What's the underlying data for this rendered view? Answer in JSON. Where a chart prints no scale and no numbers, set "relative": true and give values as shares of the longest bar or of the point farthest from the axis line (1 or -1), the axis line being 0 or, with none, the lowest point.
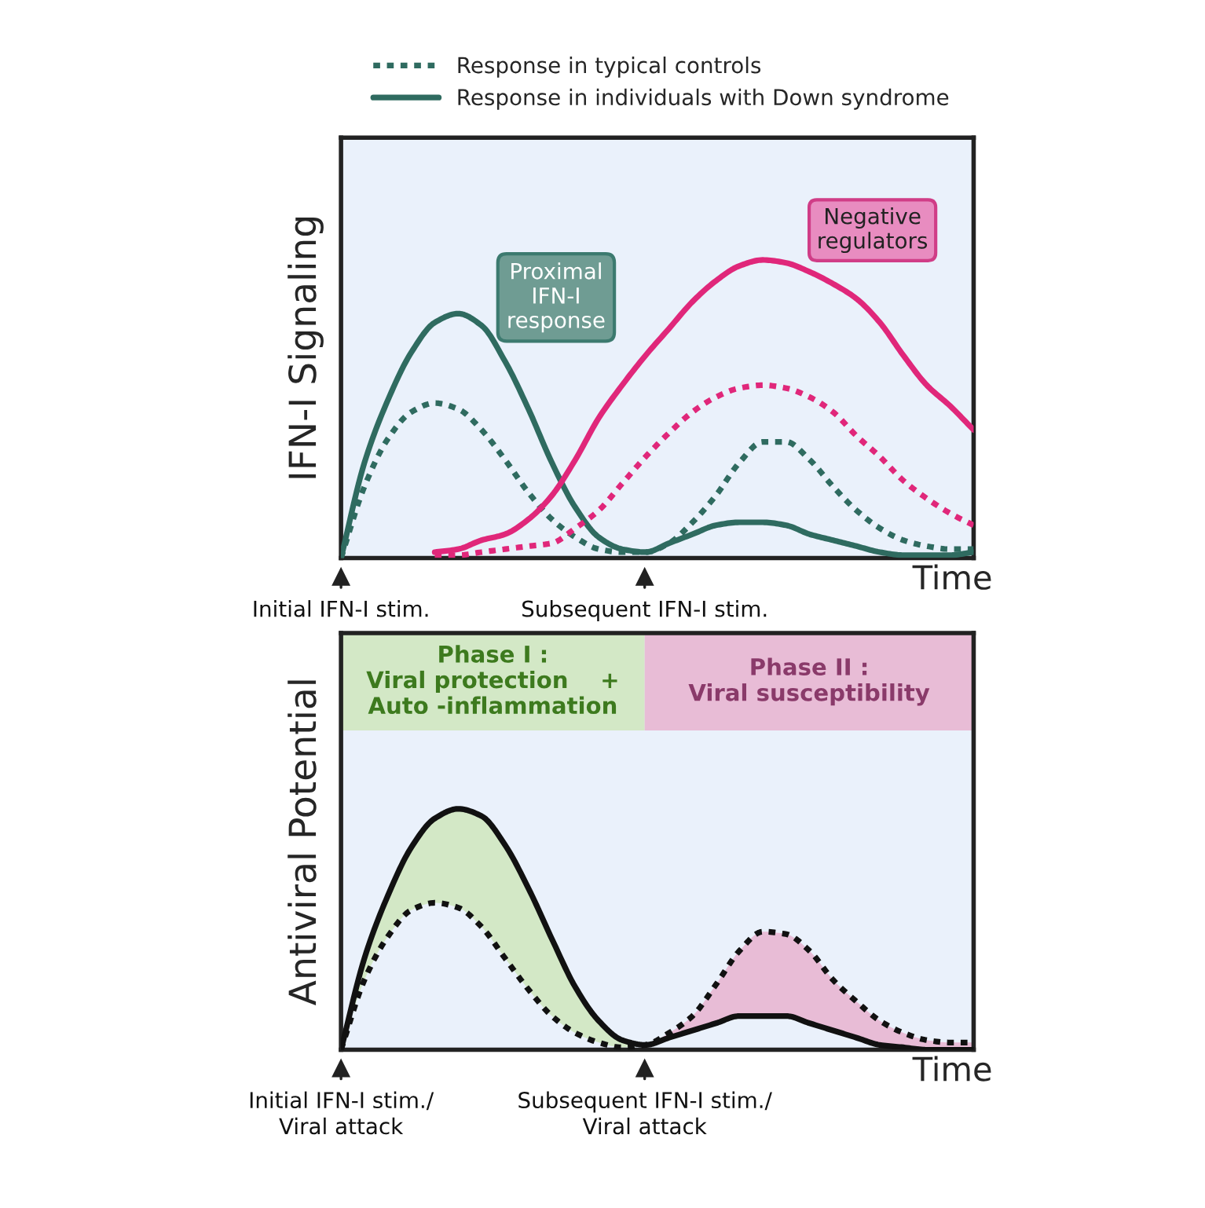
{
  "chart_data": [
    {
      "type": "line",
      "relative": true,
      "ylabel": "IFN-I Signaling",
      "xlabel": "Time",
      "legend": "top",
      "categories": [
        null,
        null,
        null,
        null,
        null,
        null,
        null,
        null,
        null,
        null,
        null,
        null,
        null,
        null,
        null,
        null,
        null,
        null,
        null,
        null,
        null,
        null,
        null,
        null,
        null,
        null,
        null,
        null
      ],
      "series": [
        {
          "name": "Response in typical controls",
          "color": "#2f6b60",
          "line_style": "dotted",
          "values": [
            0,
            0.24,
            0.4,
            0.49,
            0.52,
            0.5,
            0.43,
            0.33,
            0.22,
            0.13,
            0.07,
            0.03,
            0.02,
            0.02,
            0.05,
            0.12,
            0.21,
            0.32,
            0.39,
            0.39,
            0.33,
            0.24,
            0.16,
            0.1,
            0.06,
            0.04,
            0.03,
            0.03
          ]
        },
        {
          "name": "Response in individuals with Down syndrome",
          "color": "#2f6b60",
          "line_style": "solid",
          "values": [
            0,
            0.32,
            0.53,
            0.69,
            0.79,
            0.82,
            0.78,
            0.66,
            0.5,
            0.32,
            0.17,
            0.07,
            0.03,
            0.02,
            0.05,
            0.08,
            0.11,
            0.12,
            0.12,
            0.11,
            0.08,
            0.06,
            0.04,
            0.02,
            0.01,
            0.01,
            0.01,
            0.02
          ]
        },
        {
          "color": "#e0277a",
          "line_style": "dotted",
          "values": [
            null,
            null,
            null,
            null,
            0.01,
            0.01,
            0.02,
            0.03,
            0.04,
            0.05,
            0.1,
            0.16,
            0.25,
            0.34,
            0.42,
            0.49,
            0.54,
            0.57,
            0.58,
            0.57,
            0.54,
            0.49,
            0.41,
            0.34,
            0.26,
            0.2,
            0.15,
            0.11
          ]
        },
        {
          "color": "#e0277a",
          "line_style": "solid",
          "values": [
            null,
            null,
            null,
            null,
            0.02,
            0.03,
            0.06,
            0.08,
            0.13,
            0.21,
            0.33,
            0.47,
            0.58,
            0.68,
            0.77,
            0.86,
            0.93,
            0.98,
            1,
            0.99,
            0.96,
            0.92,
            0.87,
            0.79,
            0.68,
            0.58,
            0.51,
            0.43
          ]
        }
      ],
      "annotations": [
        "Proximal\nIFN-I\nresponse",
        "Negative\nregulators",
        "Initial IFN-I stim.",
        "Subsequent IFN-I stim."
      ]
    },
    {
      "type": "line",
      "relative": true,
      "ylabel": "Antiviral Potential",
      "xlabel": "Time",
      "categories": [
        null,
        null,
        null,
        null,
        null,
        null,
        null,
        null,
        null,
        null,
        null,
        null,
        null,
        null,
        null,
        null,
        null,
        null,
        null,
        null,
        null,
        null,
        null,
        null,
        null,
        null,
        null,
        null
      ],
      "series": [
        {
          "color": "#111111",
          "line_style": "dotted",
          "values": [
            0,
            0.29,
            0.47,
            0.58,
            0.61,
            0.59,
            0.51,
            0.38,
            0.25,
            0.14,
            0.07,
            0.03,
            0.01,
            0.02,
            0.07,
            0.14,
            0.27,
            0.41,
            0.49,
            0.48,
            0.41,
            0.29,
            0.2,
            0.12,
            0.07,
            0.04,
            0.03,
            0.03
          ]
        },
        {
          "color": "#111111",
          "line_style": "solid",
          "values": [
            0,
            0.38,
            0.64,
            0.84,
            0.96,
            1,
            0.97,
            0.85,
            0.67,
            0.46,
            0.26,
            0.12,
            0.04,
            0.02,
            0.05,
            0.08,
            0.11,
            0.14,
            0.14,
            0.14,
            0.11,
            0.08,
            0.05,
            0.02,
            0.01,
            0,
            0,
            0
          ]
        }
      ],
      "annotations": [
        "Phase I :\nViral protection    +\nAuto -inflammation",
        "Phase II :\nViral susceptibility",
        "Initial IFN-I stim./\nViral attack",
        "Subsequent IFN-I stim./\nViral attack"
      ]
    }
  ]
}
